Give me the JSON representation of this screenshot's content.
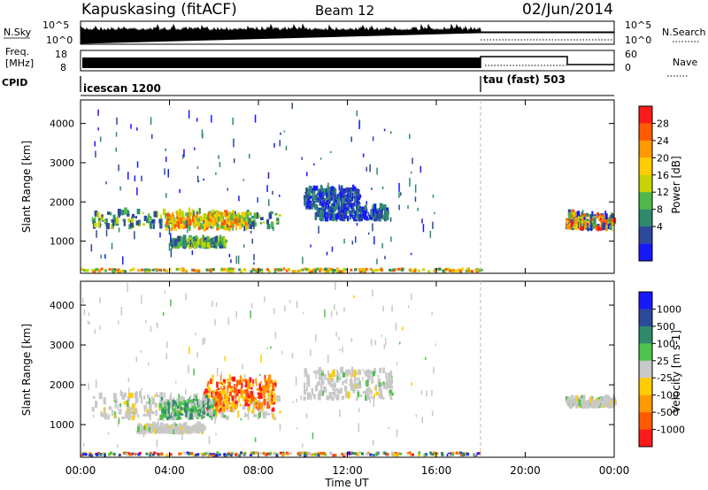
{
  "header": {
    "station": "Kapuskasing (fitACF)",
    "beam": "Beam 12",
    "date": "02/Jun/2014"
  },
  "left_labels": {
    "nsky": "N.Sky",
    "freq": "Freq.",
    "mhz": "[MHz]",
    "cpid": "CPID"
  },
  "right_labels": {
    "nsearch": "N.Search",
    "nave": "Nave"
  },
  "sky_ticks": [
    "10^5",
    "10^0"
  ],
  "freq_ticks": [
    "18",
    "8"
  ],
  "nave_ticks": [
    "60",
    "0"
  ],
  "cpid": [
    {
      "label": "icescan 1200",
      "start_hour": 0
    },
    {
      "label": "tau (fast) 503",
      "start_hour": 18
    }
  ],
  "x_axis": {
    "ticks": [
      "00:00",
      "04:00",
      "08:00",
      "12:00",
      "16:00",
      "20:00",
      "00:00"
    ],
    "label": "Time UT"
  },
  "power_colorbar": {
    "label": "Power [dB]",
    "ticks": [
      "28",
      "24",
      "20",
      "16",
      "12",
      "8",
      "4"
    ],
    "colors": [
      "#ff1a1a",
      "#ff5a00",
      "#ff9900",
      "#ffcc00",
      "#c8d400",
      "#4fb84a",
      "#2f8a6e",
      "#2c4a9a",
      "#1818ff"
    ]
  },
  "velocity_colorbar": {
    "label": "Velocity [m s-1]",
    "ticks": [
      "1000",
      "500",
      "100",
      "25",
      "-25",
      "-100",
      "-500",
      "-1000"
    ],
    "colors": [
      "#1818ff",
      "#2c4a9a",
      "#2f8a6e",
      "#4fc24a",
      "#c8c8c8",
      "#ffcc00",
      "#ff9900",
      "#ff5a00",
      "#ff1a1a"
    ]
  },
  "chart_data": [
    {
      "type": "heatmap",
      "name": "power",
      "xlabel": "Time UT",
      "ylabel": "Slant Range [km]",
      "xlim": [
        0,
        24
      ],
      "ylim": [
        180,
        4600
      ],
      "yticks": [
        1000,
        2000,
        3000,
        4000
      ],
      "regions": [
        {
          "t": [
            0.5,
            9.0
          ],
          "r": [
            1300,
            1700
          ],
          "level": "mid"
        },
        {
          "t": [
            3.8,
            7.5
          ],
          "r": [
            1250,
            1650
          ],
          "level": "high"
        },
        {
          "t": [
            10.5,
            13.8
          ],
          "r": [
            1500,
            1800
          ],
          "level": "low"
        },
        {
          "t": [
            10.0,
            12.5
          ],
          "r": [
            1800,
            2300
          ],
          "level": "low"
        },
        {
          "t": [
            21.8,
            24.0
          ],
          "r": [
            1250,
            1650
          ],
          "level": "mixed"
        },
        {
          "t": [
            4.0,
            6.5
          ],
          "r": [
            800,
            1000
          ],
          "level": "mid"
        },
        {
          "t": [
            0.0,
            18.0
          ],
          "r": [
            190,
            260
          ],
          "level": "ground"
        }
      ]
    },
    {
      "type": "heatmap",
      "name": "velocity",
      "xlabel": "Time UT",
      "ylabel": "Slant Range [km]",
      "xlim": [
        0,
        24
      ],
      "ylim": [
        180,
        4600
      ],
      "yticks": [
        1000,
        2000,
        3000,
        4000
      ],
      "regions": [
        {
          "t": [
            0.5,
            9.0
          ],
          "r": [
            1100,
            1700
          ],
          "level": "zero"
        },
        {
          "t": [
            5.5,
            8.8
          ],
          "r": [
            1300,
            2100
          ],
          "level": "negative"
        },
        {
          "t": [
            3.5,
            6.0
          ],
          "r": [
            1100,
            1600
          ],
          "level": "positive"
        },
        {
          "t": [
            10.0,
            14.0
          ],
          "r": [
            1600,
            2300
          ],
          "level": "zero"
        },
        {
          "t": [
            21.8,
            24.0
          ],
          "r": [
            1400,
            1600
          ],
          "level": "zero"
        },
        {
          "t": [
            2.5,
            5.5
          ],
          "r": [
            750,
            900
          ],
          "level": "zero"
        },
        {
          "t": [
            0.0,
            18.0
          ],
          "r": [
            190,
            260
          ],
          "level": "ground"
        }
      ]
    }
  ]
}
